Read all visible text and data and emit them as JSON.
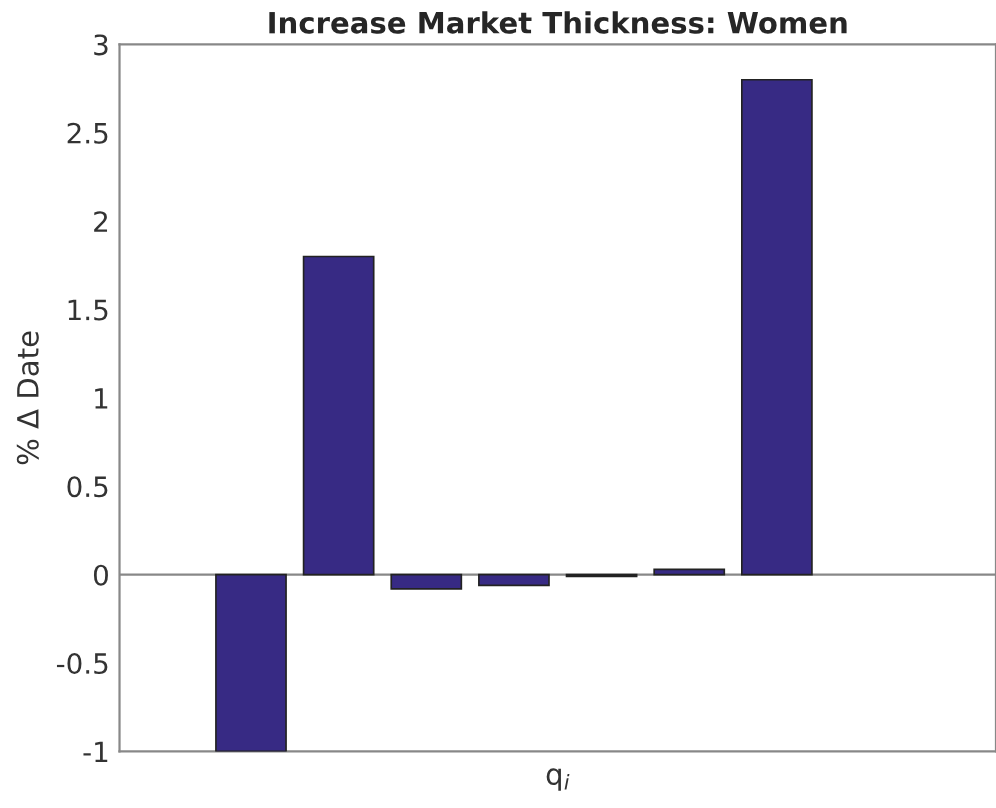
{
  "chart_data": {
    "type": "bar",
    "title": "Increase Market Thickness: Women",
    "xlabel": "q$_{i}$",
    "ylabel": "% Δ Date",
    "categories": [
      null,
      null,
      null,
      null,
      null,
      null,
      null,
      null,
      null,
      null
    ],
    "values": [
      null,
      -1,
      1.8,
      -0.08,
      -0.06,
      -0.01,
      0.03,
      2.8,
      null,
      null
    ],
    "ref_lines": [
      {
        "axis": "y",
        "value": 0,
        "color": "#888888"
      }
    ],
    "color": "#372a84",
    "ylim": [
      -1,
      3
    ],
    "yticks": [
      -1,
      -0.5,
      0,
      0.5,
      1,
      1.5,
      2,
      2.5,
      3
    ],
    "grid": false,
    "legend": false,
    "tick_labels": "y"
  }
}
